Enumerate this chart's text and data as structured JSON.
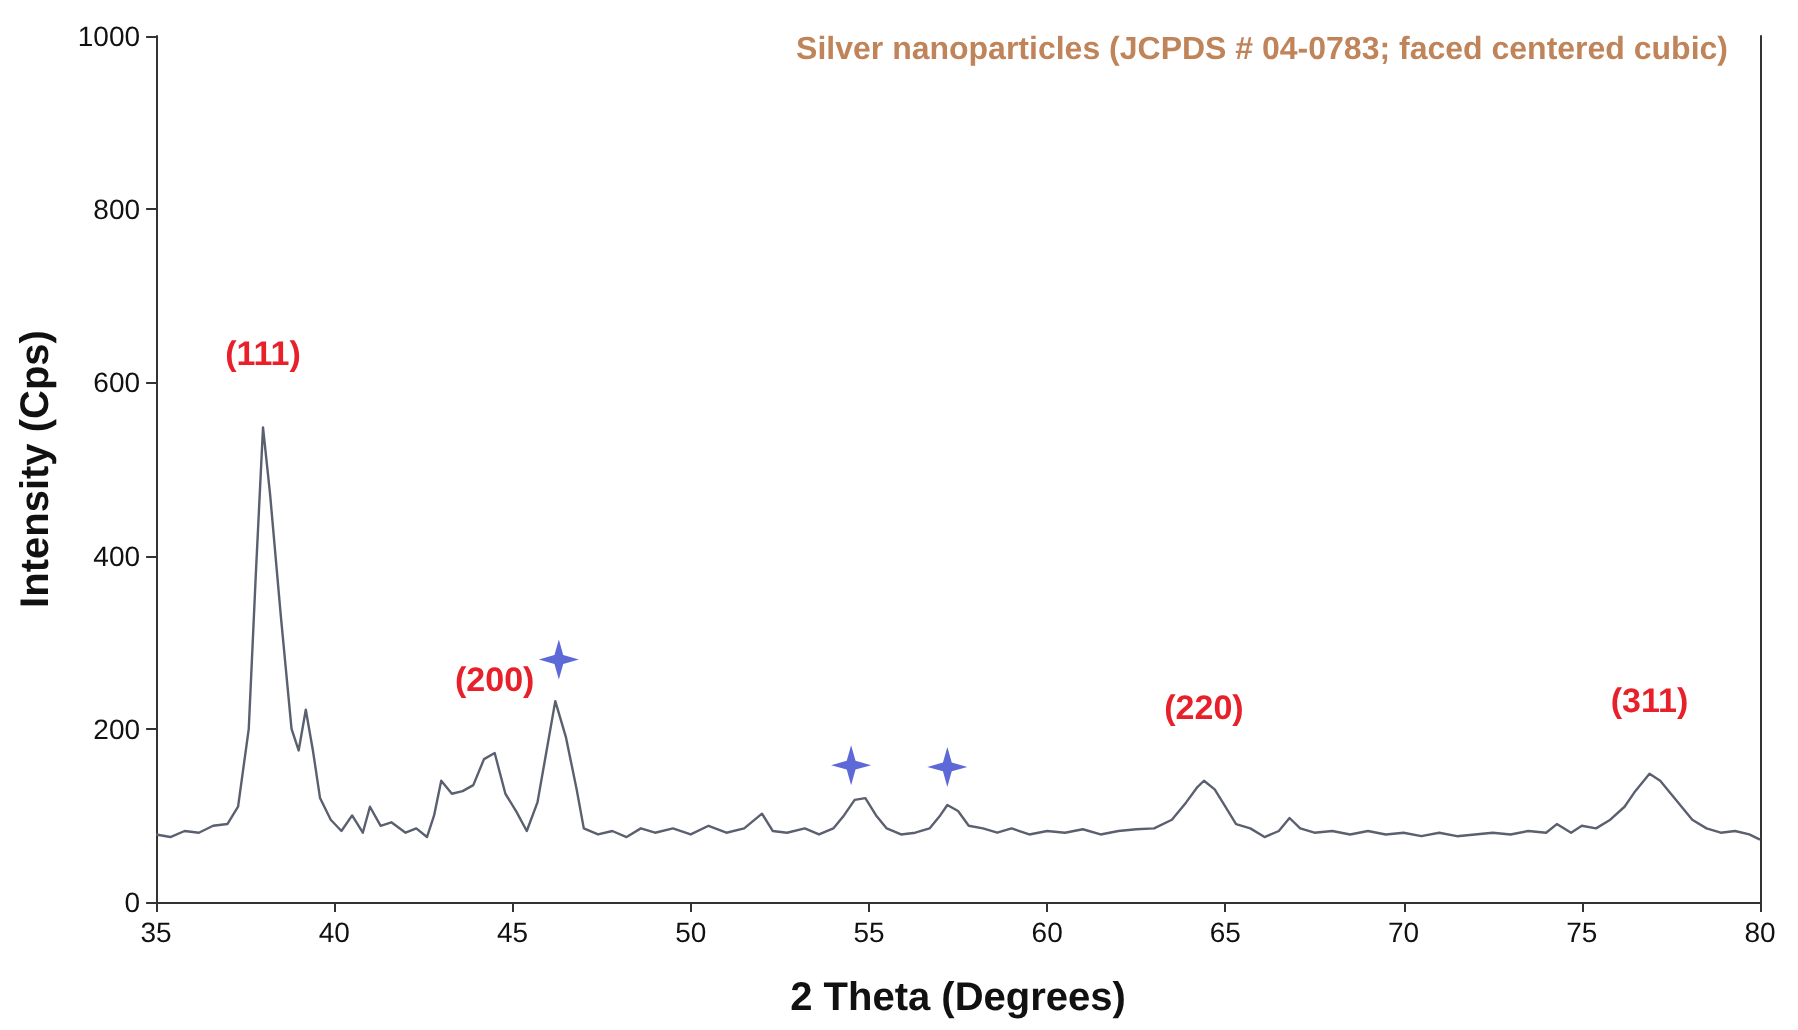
{
  "chart_data": {
    "type": "line",
    "title": "Silver nanoparticles (JCPDS # 04-0783; faced centered cubic)",
    "xlabel": "2 Theta (Degrees)",
    "ylabel": "Intensity (Cps)",
    "xlim": [
      35,
      80
    ],
    "xticks": [
      35,
      40,
      45,
      50,
      55,
      60,
      65,
      70,
      75,
      80
    ],
    "ylim": [
      0,
      1000
    ],
    "yticks": [
      0,
      200,
      400,
      600,
      800,
      1000
    ],
    "grid": false,
    "series": [
      {
        "marker": "none",
        "color": "#5a6070",
        "x": [
          35,
          35.4,
          35.8,
          36.2,
          36.6,
          37.0,
          37.3,
          37.6,
          37.8,
          38.0,
          38.2,
          38.5,
          38.8,
          39.0,
          39.2,
          39.4,
          39.6,
          39.9,
          40.2,
          40.5,
          40.8,
          41.0,
          41.3,
          41.6,
          42.0,
          42.3,
          42.6,
          42.8,
          43.0,
          43.3,
          43.6,
          43.9,
          44.2,
          44.5,
          44.8,
          45.1,
          45.4,
          45.7,
          46.0,
          46.2,
          46.5,
          46.8,
          47.0,
          47.4,
          47.8,
          48.2,
          48.6,
          49.0,
          49.5,
          50.0,
          50.5,
          51.0,
          51.5,
          52.0,
          52.3,
          52.7,
          53.2,
          53.6,
          54.0,
          54.3,
          54.6,
          54.9,
          55.2,
          55.5,
          55.9,
          56.3,
          56.7,
          57.0,
          57.2,
          57.5,
          57.8,
          58.2,
          58.6,
          59.0,
          59.5,
          60.0,
          60.5,
          61.0,
          61.5,
          62.0,
          62.5,
          63.0,
          63.5,
          63.9,
          64.2,
          64.4,
          64.7,
          65.0,
          65.3,
          65.7,
          66.1,
          66.5,
          66.8,
          67.1,
          67.5,
          68.0,
          68.5,
          69.0,
          69.5,
          70.0,
          70.5,
          71.0,
          71.5,
          72.0,
          72.5,
          73.0,
          73.5,
          74.0,
          74.3,
          74.7,
          75.0,
          75.4,
          75.8,
          76.2,
          76.5,
          76.9,
          77.2,
          77.5,
          77.8,
          78.1,
          78.5,
          78.9,
          79.3,
          79.7,
          80
        ],
        "values": [
          78,
          75,
          82,
          80,
          88,
          90,
          110,
          200,
          380,
          548,
          470,
          330,
          200,
          175,
          222,
          175,
          120,
          95,
          82,
          100,
          80,
          110,
          88,
          92,
          80,
          85,
          75,
          100,
          140,
          125,
          128,
          135,
          165,
          172,
          125,
          105,
          82,
          115,
          185,
          232,
          190,
          130,
          85,
          78,
          82,
          75,
          85,
          80,
          85,
          78,
          88,
          80,
          85,
          102,
          82,
          80,
          85,
          78,
          85,
          100,
          118,
          120,
          100,
          85,
          78,
          80,
          85,
          100,
          112,
          105,
          88,
          85,
          80,
          85,
          78,
          82,
          80,
          84,
          78,
          82,
          84,
          85,
          95,
          115,
          132,
          140,
          130,
          110,
          90,
          85,
          75,
          82,
          97,
          85,
          80,
          82,
          78,
          82,
          78,
          80,
          76,
          80,
          76,
          78,
          80,
          78,
          82,
          80,
          90,
          80,
          88,
          85,
          95,
          110,
          128,
          148,
          140,
          125,
          110,
          95,
          85,
          80,
          82,
          78,
          72
        ]
      },
      {
        "type": "scatter",
        "marker": "star",
        "color": "#3344cc",
        "x": [
          46.3,
          54.5,
          57.2
        ],
        "values": [
          280,
          158,
          156
        ]
      }
    ],
    "annotations": [
      {
        "text": "(111)",
        "x": 38,
        "y": 548
      },
      {
        "text": "(200)",
        "x": 44.5,
        "y": 172
      },
      {
        "text": "(220)",
        "x": 64.4,
        "y": 140
      },
      {
        "text": "(311)",
        "x": 76.9,
        "y": 148
      }
    ]
  }
}
